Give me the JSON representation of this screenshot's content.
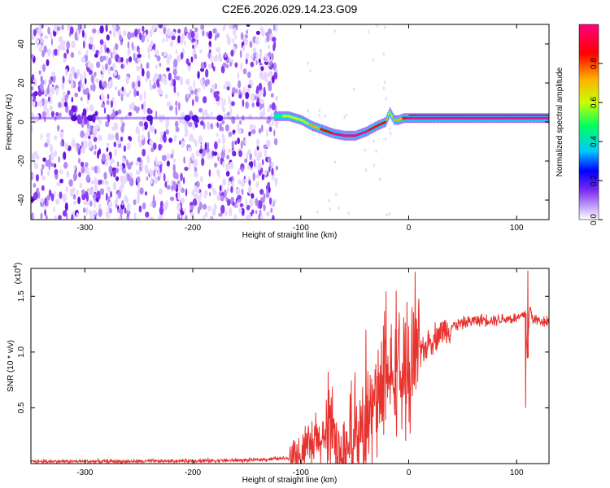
{
  "title": "C2E6.2026.029.14.23.G09",
  "chart_data": [
    {
      "type": "heatmap",
      "subtype": "spectrogram",
      "xlabel": "Height of straight line (km)",
      "ylabel": "Frequency (Hz)",
      "xlim": [
        -350,
        130
      ],
      "ylim": [
        -50,
        50
      ],
      "xticks": [
        -300,
        -200,
        -100,
        0,
        100
      ],
      "yticks": [
        -40,
        -20,
        0,
        20,
        40
      ],
      "xtick_labels": [
        "-300",
        "-200",
        "-100",
        "0",
        "100"
      ],
      "ytick_labels": [
        "-40",
        "-20",
        "0",
        "20",
        "40"
      ],
      "noise_region_x": [
        -350,
        -122
      ],
      "signal_track": {
        "x": [
          -125,
          -112,
          -100,
          -90,
          -80,
          -70,
          -60,
          -50,
          -40,
          -30,
          -22,
          -18,
          -14,
          -10,
          -5,
          0,
          20,
          50,
          90,
          110,
          130
        ],
        "freq": [
          3,
          3,
          1,
          -2,
          -4,
          -6,
          -7,
          -7,
          -5,
          -2,
          0,
          5,
          1,
          1,
          2,
          2,
          2,
          2,
          2,
          2,
          2
        ],
        "amplitude": [
          0.5,
          0.6,
          0.6,
          0.7,
          0.8,
          0.9,
          0.9,
          0.9,
          0.9,
          0.85,
          0.8,
          0.6,
          0.7,
          0.7,
          0.8,
          0.95,
          0.95,
          1.0,
          1.0,
          0.95,
          0.95
        ]
      },
      "colorbar": {
        "label": "Normalized spectral amplitude",
        "range": [
          0.0,
          1.0
        ],
        "ticks": [
          "0.0",
          "0.2",
          "0.4",
          "0.6",
          "0.8"
        ],
        "tick_values": [
          0.0,
          0.2,
          0.4,
          0.6,
          0.8
        ],
        "colors": [
          "#ffffff",
          "#c8a8ff",
          "#7a2cf0",
          "#0000ff",
          "#00c8ff",
          "#00ff60",
          "#c8ff00",
          "#ffb000",
          "#ff0000",
          "#ff0080"
        ]
      }
    },
    {
      "type": "line",
      "xlabel": "Height of straight line (km)",
      "ylabel": "SNR (10 * v/v)",
      "multiplier_label": "(x10",
      "multiplier_exponent": "4",
      "xlim": [
        -350,
        130
      ],
      "ylim": [
        0,
        1.75
      ],
      "xticks": [
        -300,
        -200,
        -100,
        0,
        100
      ],
      "yticks": [
        0.5,
        1.0,
        1.5
      ],
      "xtick_labels": [
        "-300",
        "-200",
        "-100",
        "0",
        "100"
      ],
      "ytick_labels": [
        "0.5",
        "1.0",
        "1.5"
      ],
      "line_color": "#e8322e",
      "series": [
        {
          "name": "SNR",
          "x": [
            -350,
            -250,
            -150,
            -110,
            -100,
            -90,
            -80,
            -75,
            -65,
            -55,
            -50,
            -45,
            -40,
            -35,
            -30,
            -25,
            -20,
            -15,
            -12,
            -10,
            -5,
            0,
            5,
            10,
            20,
            30,
            40,
            50,
            60,
            70,
            80,
            90,
            100,
            105,
            108,
            110,
            112,
            115,
            120,
            130
          ],
          "y": [
            0.02,
            0.02,
            0.03,
            0.05,
            0.08,
            0.15,
            0.22,
            0.28,
            0.12,
            0.05,
            0.08,
            0.18,
            0.35,
            0.45,
            0.55,
            0.6,
            0.7,
            0.78,
            0.82,
            0.8,
            0.75,
            0.8,
            0.9,
            1.0,
            1.1,
            1.18,
            1.23,
            1.26,
            1.28,
            1.29,
            1.29,
            1.3,
            1.3,
            1.32,
            1.35,
            0.95,
            1.4,
            1.3,
            1.28,
            1.28
          ]
        }
      ],
      "peaks": [
        {
          "x": -80,
          "y": 0.38
        },
        {
          "x": -40,
          "y": 1.2
        },
        {
          "x": -12,
          "y": 1.55
        },
        {
          "x": -2,
          "y": 1.45
        },
        {
          "x": 110,
          "y": 1.73
        },
        {
          "x": 108,
          "y": 0.5
        }
      ]
    }
  ]
}
